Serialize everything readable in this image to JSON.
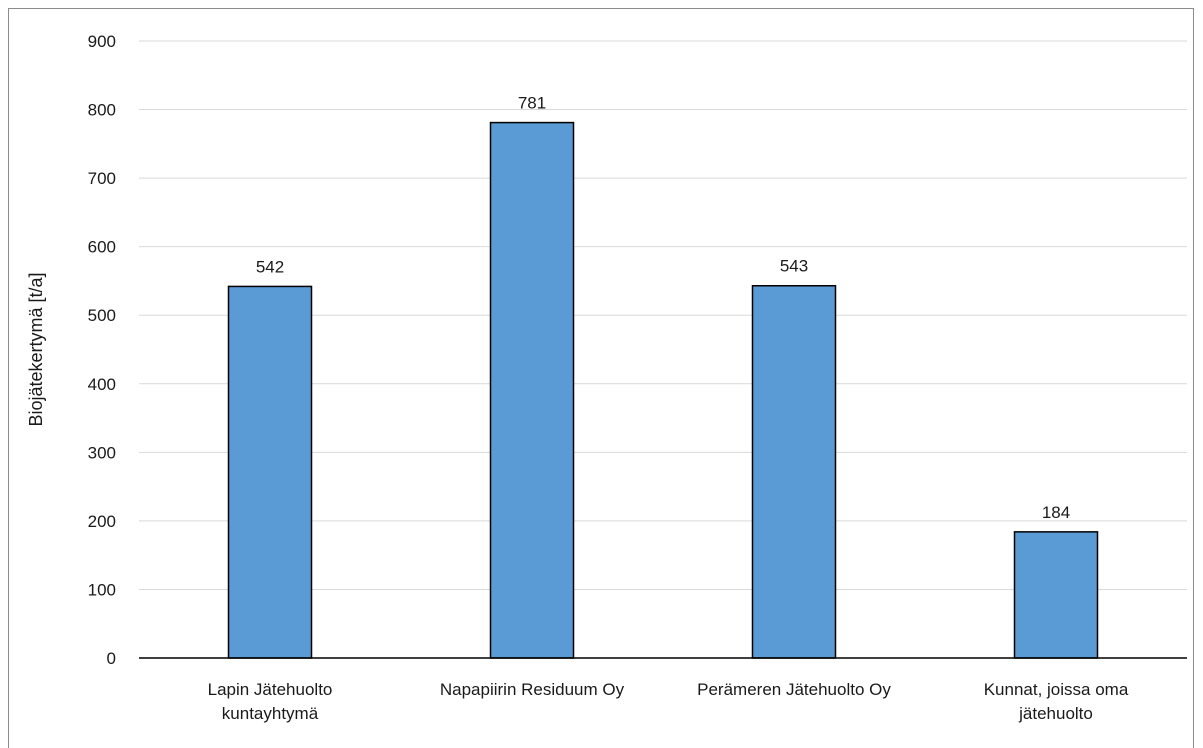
{
  "chart_data": {
    "type": "bar",
    "title": "",
    "xlabel": "",
    "ylabel": "Biojätekertymä [t/a]",
    "categories": [
      [
        "Lapin Jätehuolto",
        "kuntayhtymä"
      ],
      [
        "Napapiirin Residuum Oy"
      ],
      [
        "Perämeren Jätehuolto Oy"
      ],
      [
        "Kunnat, joissa oma",
        "jätehuolto"
      ]
    ],
    "values": [
      542,
      781,
      543,
      184
    ],
    "data_labels": [
      "542",
      "781",
      "543",
      "184"
    ],
    "ylim": [
      0,
      900
    ],
    "yticks": [
      0,
      100,
      200,
      300,
      400,
      500,
      600,
      700,
      800,
      900
    ],
    "grid": true,
    "legend": "none",
    "colors": {
      "bar": "#5b9bd5",
      "bar_edge": "#000000",
      "grid": "#d9d9d9",
      "axis": "#000000"
    }
  }
}
